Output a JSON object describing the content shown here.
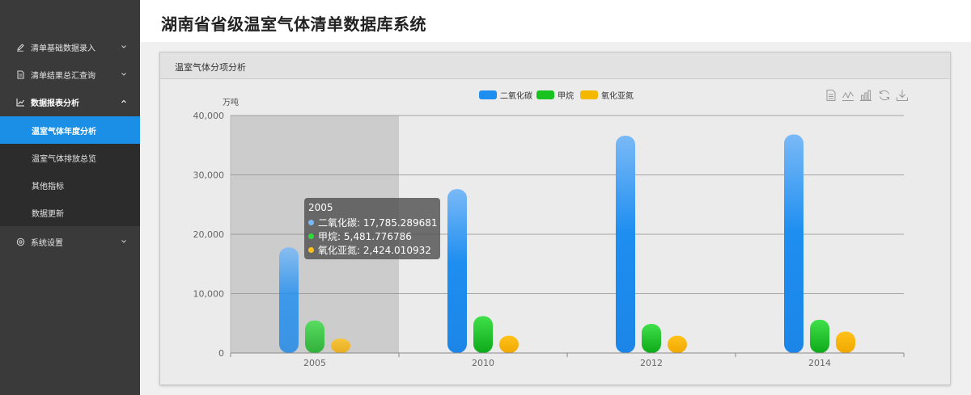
{
  "app": {
    "title": "湖南省省级温室气体清单数据库系统"
  },
  "sidebar": {
    "items": [
      {
        "label": "清单基础数据录入",
        "icon": "pencil-icon"
      },
      {
        "label": "清单结果总汇查询",
        "icon": "document-icon"
      },
      {
        "label": "数据报表分析",
        "icon": "chart-icon"
      },
      {
        "label": "系统设置",
        "icon": "settings-icon"
      }
    ],
    "subitems": [
      {
        "label": "温室气体年度分析"
      },
      {
        "label": "温室气体排放总览"
      },
      {
        "label": "其他指标"
      },
      {
        "label": "数据更新"
      }
    ]
  },
  "panel": {
    "title": "温室气体分项分析"
  },
  "colors": {
    "co2": "#1e8ef0",
    "ch4": "#18c21f",
    "n2o": "#f5b800",
    "accent": "#1b8fe6"
  },
  "chart_data": {
    "type": "bar",
    "ylabel": "万吨",
    "ylim": [
      0,
      40000
    ],
    "yticks": [
      "0",
      "10,000",
      "20,000",
      "30,000",
      "40,000"
    ],
    "categories": [
      "2005",
      "2010",
      "2012",
      "2014"
    ],
    "series": [
      {
        "name": "二氧化碳",
        "values": [
          17785.289681,
          27600,
          36600,
          36800
        ]
      },
      {
        "name": "甲烷",
        "values": [
          5481.776786,
          6200,
          4900,
          5600
        ]
      },
      {
        "name": "氧化亚氮",
        "values": [
          2424.010932,
          2900,
          2900,
          3600
        ]
      }
    ],
    "highlight_category": "2005",
    "tooltip": {
      "title": "2005",
      "lines": [
        {
          "label": "二氧化碳",
          "value": "17,785.289681"
        },
        {
          "label": "甲烷",
          "value": "5,481.776786"
        },
        {
          "label": "氧化亚氮",
          "value": "2,424.010932"
        }
      ]
    }
  }
}
